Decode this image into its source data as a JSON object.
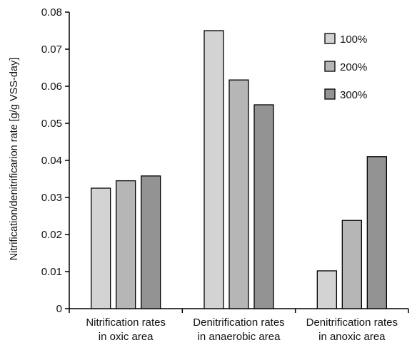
{
  "chart_data": {
    "type": "bar",
    "title": "",
    "xlabel": "",
    "ylabel": "Nitrification/denitrificarion rate [g/g VSS-day]",
    "ylim": [
      0,
      0.08
    ],
    "yticks": [
      "0",
      "0.01",
      "0.02",
      "0.03",
      "0.04",
      "0.05",
      "0.06",
      "0.07",
      "0.08"
    ],
    "categories": [
      [
        "Nitrification rates",
        "in oxic area"
      ],
      [
        "Denitrification rates",
        "in anaerobic area"
      ],
      [
        "Denitrification rates",
        "in anoxic area"
      ]
    ],
    "series": [
      {
        "name": "100%",
        "color": "#d3d3d3",
        "values": [
          0.0325,
          0.075,
          0.0102
        ]
      },
      {
        "name": "200%",
        "color": "#b6b6b6",
        "values": [
          0.0345,
          0.0617,
          0.0238
        ]
      },
      {
        "name": "300%",
        "color": "#939393",
        "values": [
          0.0358,
          0.055,
          0.041
        ]
      }
    ],
    "grid": false,
    "legend_position": "top-right"
  }
}
